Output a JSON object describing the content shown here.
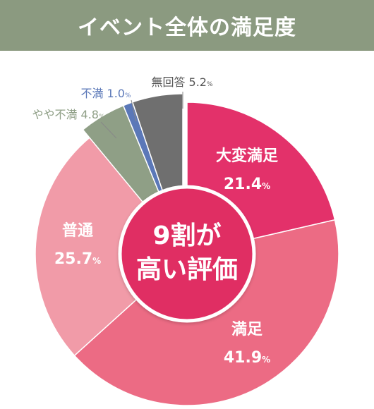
{
  "header": {
    "title": "イベント全体の満足度"
  },
  "center_label": {
    "line1": "9割が",
    "line2": "高い評価"
  },
  "colors": {
    "header_bg": "#8b9a80",
    "center_circle": "#e02f63"
  },
  "chart_data": {
    "type": "pie",
    "title": "イベント全体の満足度",
    "unit": "%",
    "slices": [
      {
        "label": "大変満足",
        "value": 21.4,
        "value_text": "21.4",
        "color": "#e3316a",
        "label_color": "#ffffff"
      },
      {
        "label": "満足",
        "value": 41.9,
        "value_text": "41.9",
        "color": "#ec6b84",
        "label_color": "#ffffff"
      },
      {
        "label": "普通",
        "value": 25.7,
        "value_text": "25.7",
        "color": "#f19ba8",
        "label_color": "#ffffff"
      },
      {
        "label": "やや不満",
        "value": 4.8,
        "value_text": "4.8",
        "color": "#8f9f86",
        "label_color": "#8f9f86"
      },
      {
        "label": "不満",
        "value": 1.0,
        "value_text": "1.0",
        "color": "#5b78b8",
        "label_color": "#5b78b8"
      },
      {
        "label": "無回答",
        "value": 5.2,
        "value_text": "5.2",
        "color": "#6f6f6f",
        "label_color": "#555555"
      }
    ]
  }
}
